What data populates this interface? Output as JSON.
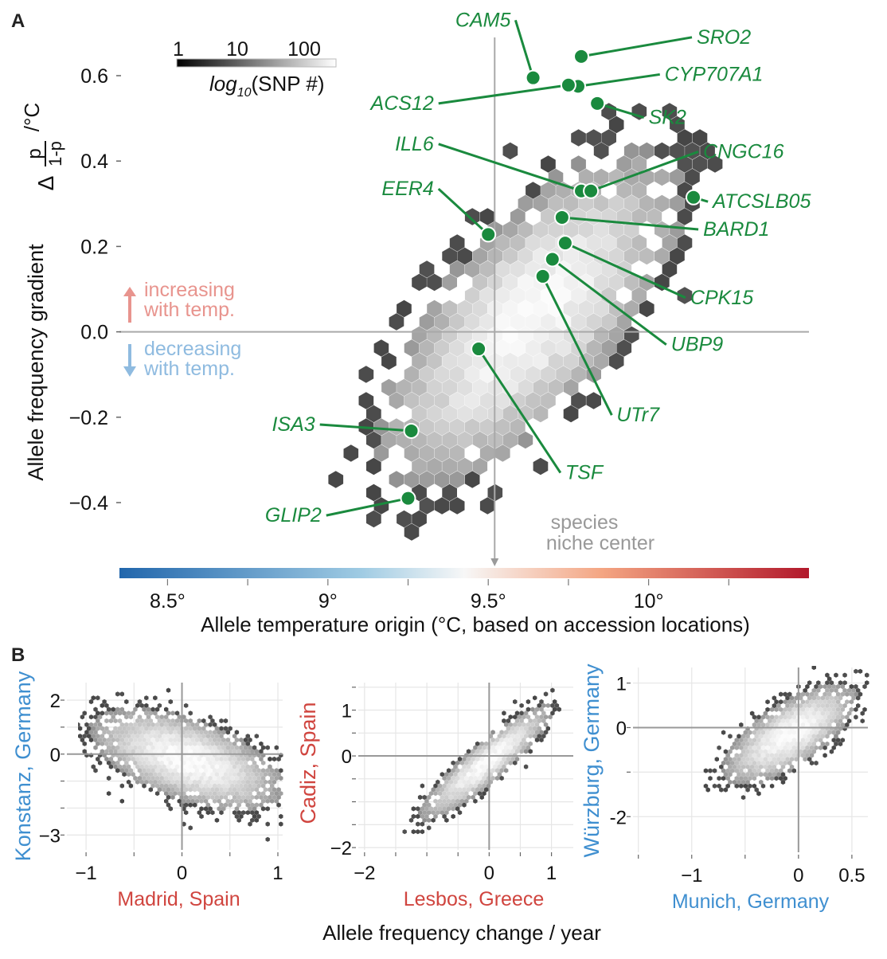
{
  "chart_data": [
    {
      "panel": "A",
      "type": "heatmap",
      "subtype": "hexbin-scatter",
      "title": "",
      "xlabel": "Allele temperature origin (°C, based on accession locations)",
      "ylabel_main": "Allele frequency gradient",
      "ylabel_formula": {
        "delta": "Δ",
        "numerator": "p",
        "denominator": "1-p",
        "unit": "/°C"
      },
      "xlim": [
        8.35,
        10.5
      ],
      "ylim": [
        -0.5,
        0.66
      ],
      "xticks": [
        8.5,
        9.0,
        9.5,
        10.0
      ],
      "xtick_labels": [
        "8.5°",
        "9°",
        "9.5°",
        "10°"
      ],
      "yticks": [
        0.6,
        0.4,
        0.2,
        0.0,
        -0.2,
        -0.4
      ],
      "ytick_labels": [
        "0.6",
        "0.4",
        "0.2",
        "0.0",
        "−0.2",
        "−0.4"
      ],
      "reference_lines": {
        "x": 9.52,
        "y": 0.0
      },
      "niche_center": {
        "x": 9.52,
        "label_line1": "species",
        "label_line2": "niche center"
      },
      "density_legend": {
        "title_func": "log",
        "title_sub": "10",
        "title_rest": "(SNP #)",
        "tick_labels": [
          "1",
          "10",
          "100"
        ],
        "placement": "top-left"
      },
      "x_colorbar": {
        "from": "#2166ac",
        "mid": "#f7f7f7",
        "to": "#b2182b"
      },
      "annotations": {
        "increasing": {
          "line1": "increasing",
          "line2": "with temp.",
          "color": "#e8948e"
        },
        "decreasing": {
          "line1": "decreasing",
          "line2": "with temp.",
          "color": "#8fbbe0"
        }
      },
      "density_model": {
        "center_x": 9.63,
        "center_y": 0.03,
        "sd_x": 0.19,
        "sd_y": 0.16,
        "correlation": 0.7
      },
      "highlight_color": "#1a8a3e",
      "genes": [
        {
          "name": "CAM5",
          "x": 9.64,
          "y": 0.595,
          "label_x": 9.57,
          "label_y": 0.715
        },
        {
          "name": "SRO2",
          "x": 9.79,
          "y": 0.645,
          "label_x": 10.15,
          "label_y": 0.675
        },
        {
          "name": "CYP707A1",
          "x": 9.78,
          "y": 0.575,
          "label_x": 10.05,
          "label_y": 0.588
        },
        {
          "name": "ACS12",
          "x": 9.75,
          "y": 0.578,
          "label_x": 9.33,
          "label_y": 0.52
        },
        {
          "name": "SK2",
          "x": 9.84,
          "y": 0.535,
          "label_x": 10.0,
          "label_y": 0.487
        },
        {
          "name": "ILL6",
          "x": 9.79,
          "y": 0.33,
          "label_x": 9.33,
          "label_y": 0.425
        },
        {
          "name": "CNGC16",
          "x": 9.82,
          "y": 0.33,
          "label_x": 10.17,
          "label_y": 0.407
        },
        {
          "name": "ATCSLB05",
          "x": 10.14,
          "y": 0.315,
          "label_x": 10.2,
          "label_y": 0.29
        },
        {
          "name": "EER4",
          "x": 9.5,
          "y": 0.228,
          "label_x": 9.33,
          "label_y": 0.32
        },
        {
          "name": "BARD1",
          "x": 9.73,
          "y": 0.268,
          "label_x": 10.17,
          "label_y": 0.225
        },
        {
          "name": "CPK15",
          "x": 9.74,
          "y": 0.208,
          "label_x": 10.13,
          "label_y": 0.065
        },
        {
          "name": "UBP9",
          "x": 9.7,
          "y": 0.17,
          "label_x": 10.07,
          "label_y": -0.045
        },
        {
          "name": "UTr7",
          "x": 9.67,
          "y": 0.13,
          "label_x": 9.9,
          "label_y": -0.21
        },
        {
          "name": "TSF",
          "x": 9.47,
          "y": -0.04,
          "label_x": 9.74,
          "label_y": -0.345
        },
        {
          "name": "ISA3",
          "x": 9.26,
          "y": -0.232,
          "label_x": 8.96,
          "label_y": -0.232
        },
        {
          "name": "GLIP2",
          "x": 9.25,
          "y": -0.39,
          "label_x": 8.98,
          "label_y": -0.445
        }
      ]
    },
    {
      "panel": "B1",
      "type": "heatmap",
      "subtype": "hexbin-scatter",
      "xlabel": "Madrid, Spain",
      "ylabel": "Konstanz, Germany",
      "xlabel_color": "#d0453f",
      "ylabel_color": "#3f8fd0",
      "xlim": [
        -1.2,
        1.05
      ],
      "ylim": [
        -3.55,
        2.65
      ],
      "xticks": [
        -1,
        0,
        1
      ],
      "xtick_labels": [
        "−1",
        "0",
        "1"
      ],
      "yticks": [
        2,
        0,
        -3
      ],
      "ytick_labels": [
        "2",
        "0",
        "−3"
      ],
      "density_model": {
        "center_x": 0.05,
        "center_y": -0.2,
        "sd_x": 0.4,
        "sd_y": 0.75,
        "correlation": -0.55
      }
    },
    {
      "panel": "B2",
      "type": "heatmap",
      "subtype": "hexbin-scatter",
      "xlabel": "Lesbos, Greece",
      "ylabel": "Cadiz, Spain",
      "xlabel_color": "#d0453f",
      "ylabel_color": "#d0453f",
      "xlim": [
        -2.1,
        1.35
      ],
      "ylim": [
        -2.05,
        1.6
      ],
      "xticks": [
        -2,
        0,
        1
      ],
      "xtick_labels": [
        "−2",
        "0",
        "1"
      ],
      "yticks": [
        1,
        0,
        -2
      ],
      "ytick_labels": [
        "1",
        "0",
        "−2"
      ],
      "density_model": {
        "center_x": -0.05,
        "center_y": -0.15,
        "sd_x": 0.42,
        "sd_y": 0.5,
        "correlation": 0.9
      }
    },
    {
      "panel": "B3",
      "type": "heatmap",
      "subtype": "hexbin-scatter",
      "xlabel": "Munich, Germany",
      "ylabel": "Würzburg, Germany",
      "xlabel_color": "#3f8fd0",
      "ylabel_color": "#3f8fd0",
      "xlim": [
        -1.55,
        0.65
      ],
      "ylim": [
        -2.8,
        1.35
      ],
      "xticks": [
        -1,
        0,
        0.5
      ],
      "xtick_labels": [
        "−1",
        "0",
        "0.5"
      ],
      "yticks": [
        1,
        0,
        -2
      ],
      "ytick_labels": [
        "1",
        "0",
        "-2"
      ],
      "density_model": {
        "center_x": -0.08,
        "center_y": -0.15,
        "sd_x": 0.25,
        "sd_y": 0.45,
        "correlation": 0.7
      }
    }
  ],
  "figure": {
    "panel_a_letter": "A",
    "panel_b_letter": "B",
    "panel_b_common_xlabel": "Allele frequency change / year"
  }
}
